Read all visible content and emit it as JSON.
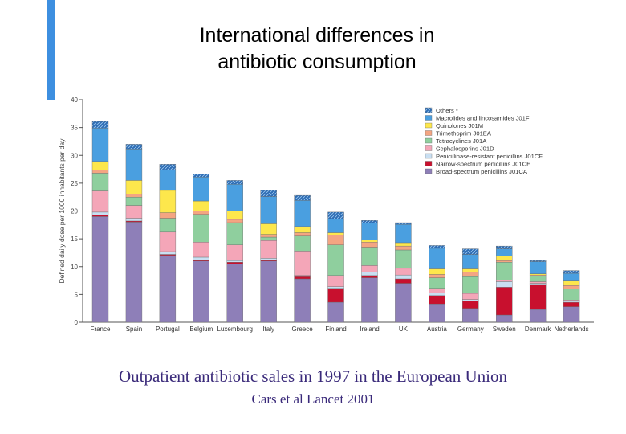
{
  "slide": {
    "title": "International differences in\nantibiotic consumption",
    "caption": "Outpatient antibiotic sales in 1997 in the European Union",
    "source": "Cars et al Lancet 2001"
  },
  "chart_data": {
    "type": "bar",
    "stacked": true,
    "ylabel": "Defined daily dose per 1000 inhabitants per day",
    "ylim": [
      0,
      40
    ],
    "yticks": [
      0,
      5,
      10,
      15,
      20,
      25,
      30,
      35,
      40
    ],
    "legend_position": "top-right",
    "categories": [
      "France",
      "Spain",
      "Portugal",
      "Belgium",
      "Luxembourg",
      "Italy",
      "Greece",
      "Finland",
      "Ireland",
      "UK",
      "Austria",
      "Germany",
      "Sweden",
      "Denmark",
      "Netherlands"
    ],
    "series": [
      {
        "name": "Broad-spectrum penicillins J01CA",
        "color": "#8e7fb8",
        "values": [
          19.0,
          18.0,
          12.0,
          11.0,
          10.5,
          11.0,
          7.8,
          3.6,
          8.0,
          7.0,
          3.3,
          2.5,
          1.3,
          2.3,
          2.8
        ]
      },
      {
        "name": "Narrow-spectrum penicillins J01CE",
        "color": "#c8102e",
        "values": [
          0.3,
          0.2,
          0.2,
          0.2,
          0.3,
          0.2,
          0.4,
          2.5,
          0.4,
          0.8,
          1.5,
          1.3,
          5.0,
          4.5,
          0.8
        ]
      },
      {
        "name": "Penicillinase-resistant penicillins J01CF",
        "color": "#c9dff2",
        "values": [
          0.5,
          0.5,
          0.5,
          0.5,
          0.3,
          0.3,
          0.2,
          0.3,
          0.6,
          0.7,
          0.5,
          0.3,
          1.0,
          0.2,
          0.2
        ]
      },
      {
        "name": "Cephalosporins J01D",
        "color": "#f4a6b8",
        "values": [
          3.8,
          2.3,
          3.5,
          2.7,
          2.8,
          3.2,
          4.4,
          2.0,
          1.2,
          1.2,
          0.8,
          1.1,
          0.3,
          0.3,
          0.2
        ]
      },
      {
        "name": "Tetracyclines J01A",
        "color": "#8fcf9e",
        "values": [
          3.2,
          1.5,
          2.5,
          5.0,
          4.0,
          0.6,
          2.7,
          5.5,
          3.3,
          3.3,
          1.9,
          3.0,
          3.2,
          1.0,
          2.0
        ]
      },
      {
        "name": "Trimethoprim J01EA",
        "color": "#f4a582",
        "values": [
          0.6,
          0.5,
          1.0,
          0.6,
          0.6,
          0.5,
          0.6,
          1.8,
          0.9,
          0.7,
          0.6,
          0.8,
          0.3,
          0.2,
          0.6
        ]
      },
      {
        "name": "Quinolones J01M",
        "color": "#fde74c",
        "values": [
          1.5,
          2.5,
          4.0,
          1.8,
          1.5,
          1.9,
          1.1,
          0.4,
          0.4,
          0.6,
          1.0,
          0.6,
          0.8,
          0.2,
          0.8
        ]
      },
      {
        "name": "Macrolides and lincosamides J01F",
        "color": "#4a9fe0",
        "values": [
          6.0,
          5.5,
          3.7,
          4.3,
          4.8,
          4.9,
          4.7,
          2.5,
          3.0,
          3.3,
          3.7,
          2.6,
          1.3,
          2.2,
          1.4
        ]
      },
      {
        "name": "Others *",
        "color": "#2f6eb5",
        "values": [
          1.2,
          1.0,
          1.0,
          0.5,
          0.7,
          1.1,
          0.9,
          1.2,
          0.5,
          0.3,
          0.5,
          1.0,
          0.5,
          0.2,
          0.5
        ]
      }
    ]
  }
}
